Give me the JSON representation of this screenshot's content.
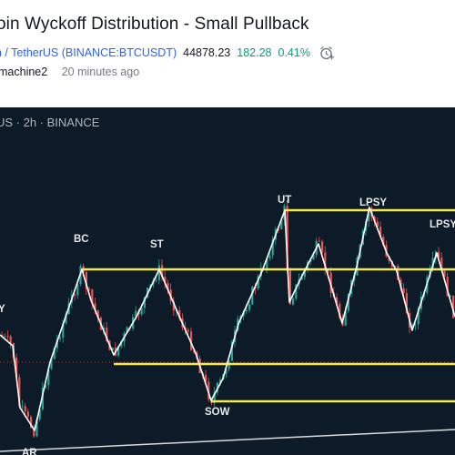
{
  "header": {
    "title": "oin Wyckoff Distribution - Small Pullback",
    "symbol": "n / TetherUS (BINANCE:BTCUSDT)",
    "price": "44878.23",
    "change": "182.28",
    "change_pct": "0.41%",
    "alert_icon": "alarm-clock-plus-icon",
    "author": "machine2",
    "time_ago": "20 minutes ago"
  },
  "chart": {
    "info": "US · 2h · BINANCE",
    "colors": {
      "background": "#0c1b27",
      "up": "#26a69a",
      "down": "#ef5350",
      "levels": "#f5ea4b",
      "path": "#ffffff"
    },
    "labels": {
      "bc": "BC",
      "st": "ST",
      "ut": "UT",
      "lpsy1": "LPSY",
      "lpsy2": "LPSY",
      "sow": "SOW",
      "ar": "AR",
      "y": "Y"
    }
  }
}
